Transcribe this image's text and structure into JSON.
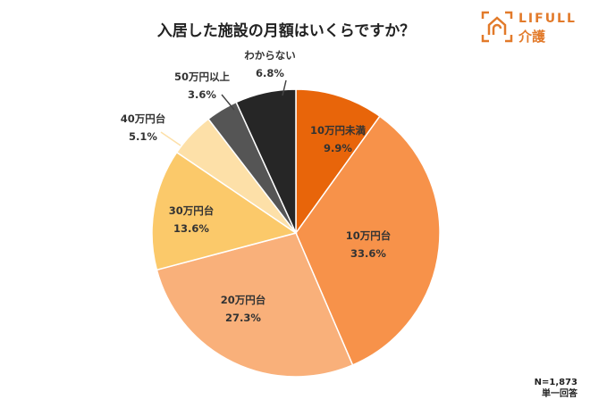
{
  "chart_data": {
    "type": "pie",
    "title": "入居した施設の月額はいくらですか？",
    "categories": [
      "10万円未満",
      "10万円台",
      "20万円台",
      "30万円台",
      "40万円台",
      "50万円以上",
      "わからない"
    ],
    "values": [
      9.9,
      33.6,
      27.3,
      13.6,
      5.1,
      3.6,
      6.8
    ],
    "value_labels": [
      "9.9%",
      "33.6%",
      "27.3%",
      "13.6%",
      "5.1%",
      "3.6%",
      "6.8%"
    ],
    "colors": [
      "#e8650a",
      "#f7924a",
      "#f9b07a",
      "#fbc96a",
      "#fde0a8",
      "#555555",
      "#262626"
    ],
    "start": "top",
    "direction": "clockwise",
    "n_label": "N=1,873",
    "answer_type": "単一回答"
  },
  "logo": {
    "brand": "LIFULL",
    "sub": "介護",
    "icon": "house-frame-icon"
  }
}
